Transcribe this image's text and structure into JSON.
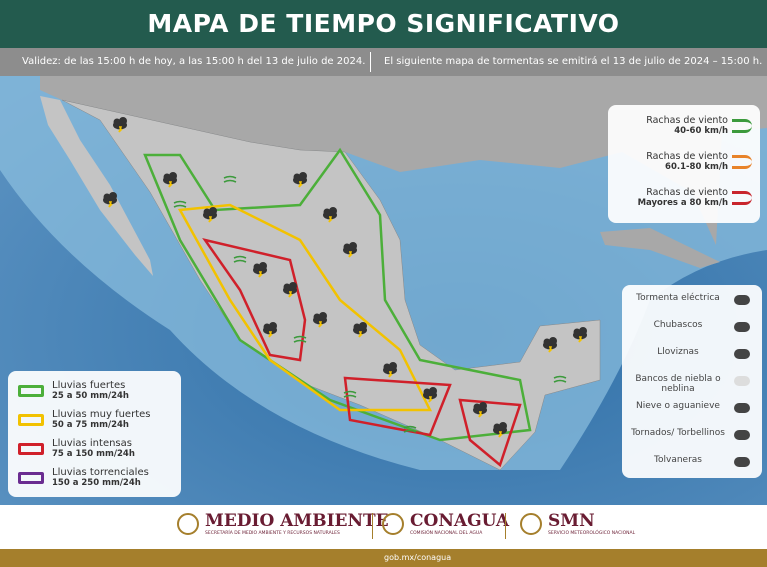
{
  "header": {
    "title": "MAPA DE TIEMPO SIGNIFICATIVO"
  },
  "validity": {
    "left": "Validez: de las 15:00 h de hoy, a las 15:00 h del 13 de julio de 2024.",
    "right": "El siguiente mapa de tormentas se emitirá el 13 de julio de 2024 – 15:00 h."
  },
  "wind_legend": [
    {
      "label": "Rachas de viento",
      "range": "40-60 km/h",
      "color": "#3c9a3c"
    },
    {
      "label": "Rachas de viento",
      "range": "60.1-80 km/h",
      "color": "#e8832a"
    },
    {
      "label": "Rachas de viento",
      "range": "Mayores a 80 km/h",
      "color": "#c8252c"
    }
  ],
  "symbol_legend": [
    "Tormenta eléctrica",
    "Chubascos",
    "Lloviznas",
    "Bancos de niebla o neblina",
    "Nieve o aguanieve",
    "Tornados/ Torbellinos",
    "Tolvaneras"
  ],
  "rain_legend": [
    {
      "label": "Lluvias fuertes",
      "range": "25 a 50 mm/24h",
      "color": "#4caf3a"
    },
    {
      "label": "Lluvias muy fuertes",
      "range": "50 a 75 mm/24h",
      "color": "#f2c200"
    },
    {
      "label": "Lluvias intensas",
      "range": "75 a 150 mm/24h",
      "color": "#d0202a"
    },
    {
      "label": "Lluvias torrenciales",
      "range": "150 a 250 mm/24h",
      "color": "#6a2c91"
    }
  ],
  "footer": {
    "logos": [
      {
        "name": "MEDIO AMBIENTE",
        "sub": "SECRETARÍA DE MEDIO AMBIENTE Y RECURSOS NATURALES"
      },
      {
        "name": "CONAGUA",
        "sub": "COMISIÓN NACIONAL DEL AGUA"
      },
      {
        "name": "SMN",
        "sub": "SERVICIO METEOROLÓGICO NACIONAL"
      }
    ],
    "link": "gob.mx/conagua"
  }
}
